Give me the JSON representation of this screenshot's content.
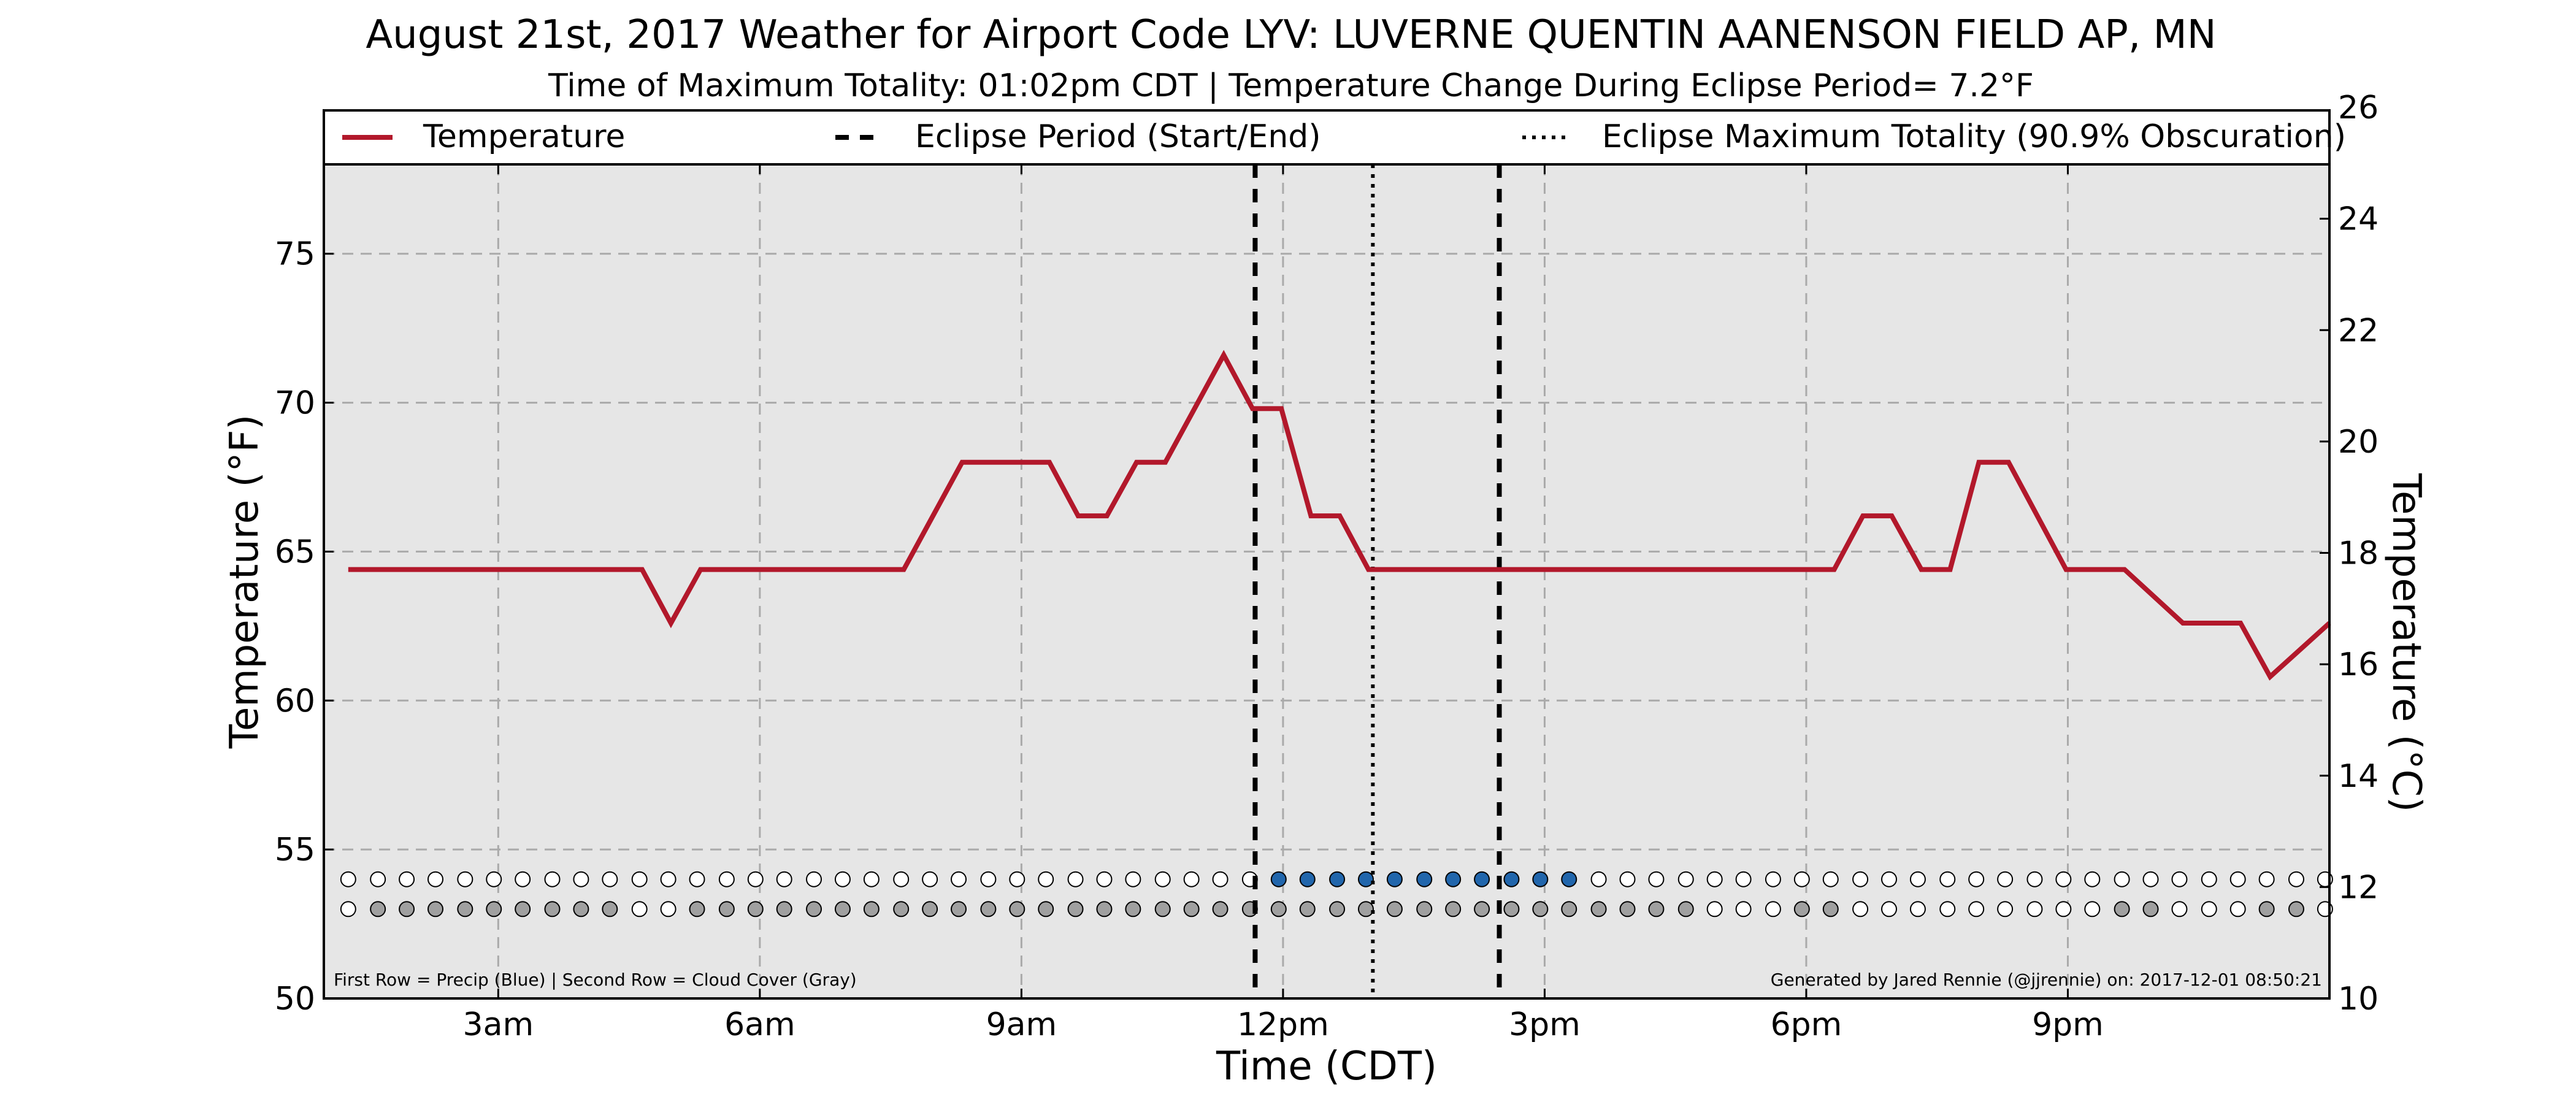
{
  "chart_data": {
    "type": "line",
    "title": "August 21st, 2017 Weather for Airport Code LYV: LUVERNE QUENTIN AANENSON FIELD AP, MN",
    "subtitle": "Time of Maximum Totality: 01:02pm CDT | Temperature Change During Eclipse Period= 7.2°F",
    "xlabel": "Time (CDT)",
    "ylabel_left": "Temperature (°F)",
    "ylabel_right": "Temperature (°C)",
    "x_unit": "hours after midnight (CDT)",
    "xlim": [
      1,
      24
    ],
    "ylim_left": [
      50,
      78
    ],
    "ylim_right": [
      10,
      26
    ],
    "x_ticks": [
      {
        "value": 3,
        "label": "3am"
      },
      {
        "value": 6,
        "label": "6am"
      },
      {
        "value": 9,
        "label": "9am"
      },
      {
        "value": 12,
        "label": "12pm"
      },
      {
        "value": 15,
        "label": "3pm"
      },
      {
        "value": 18,
        "label": "6pm"
      },
      {
        "value": 21,
        "label": "9pm"
      }
    ],
    "y_ticks_left": [
      50,
      55,
      60,
      65,
      70,
      75
    ],
    "y_ticks_right": [
      10,
      12,
      14,
      16,
      18,
      20,
      22,
      24,
      26
    ],
    "grid": true,
    "legend_placement": "top",
    "legend": [
      {
        "label": "Temperature",
        "style": "solid"
      },
      {
        "label": "Eclipse Period (Start/End)",
        "style": "dashed"
      },
      {
        "label": "Eclipse Maximum Totality (90.9% Obscuration)",
        "style": "dotted"
      }
    ],
    "series": [
      {
        "name": "Temperature",
        "color": "#b2182b",
        "x": [
          1.28,
          4.65,
          4.98,
          5.32,
          7.65,
          8.32,
          9.32,
          9.65,
          9.98,
          10.32,
          10.65,
          11.32,
          11.65,
          11.98,
          12.32,
          12.65,
          12.98,
          18.32,
          18.65,
          18.98,
          19.32,
          19.65,
          19.98,
          20.32,
          20.65,
          20.98,
          21.32,
          21.65,
          22.32,
          22.65,
          22.98,
          23.32,
          24.0
        ],
        "values": [
          64.4,
          64.4,
          62.6,
          64.4,
          64.4,
          68.0,
          68.0,
          66.2,
          66.2,
          68.0,
          68.0,
          71.6,
          69.8,
          69.8,
          66.2,
          66.2,
          64.4,
          64.4,
          66.2,
          66.2,
          64.4,
          64.4,
          68.0,
          68.0,
          66.2,
          64.4,
          64.4,
          64.4,
          62.6,
          62.6,
          62.6,
          60.8,
          62.6
        ]
      }
    ],
    "eclipse_start": 11.68,
    "eclipse_end": 14.48,
    "max_totality": 13.03,
    "observation_times": [
      1.28,
      1.62,
      1.95,
      2.28,
      2.62,
      2.95,
      3.28,
      3.62,
      3.95,
      4.28,
      4.62,
      4.95,
      5.28,
      5.62,
      5.95,
      6.28,
      6.62,
      6.95,
      7.28,
      7.62,
      7.95,
      8.28,
      8.62,
      8.95,
      9.28,
      9.62,
      9.95,
      10.28,
      10.62,
      10.95,
      11.28,
      11.62,
      11.95,
      12.28,
      12.62,
      12.95,
      13.28,
      13.62,
      13.95,
      14.28,
      14.62,
      14.95,
      15.28,
      15.62,
      15.95,
      16.28,
      16.62,
      16.95,
      17.28,
      17.62,
      17.95,
      18.28,
      18.62,
      18.95,
      19.28,
      19.62,
      19.95,
      20.28,
      20.62,
      20.95,
      21.28,
      21.62,
      21.95,
      22.28,
      22.62,
      22.95,
      23.28,
      23.62,
      23.95
    ],
    "precip_row_y": 54,
    "cloud_row_y": 53,
    "precip_flags": [
      0,
      0,
      0,
      0,
      0,
      0,
      0,
      0,
      0,
      0,
      0,
      0,
      0,
      0,
      0,
      0,
      0,
      0,
      0,
      0,
      0,
      0,
      0,
      0,
      0,
      0,
      0,
      0,
      0,
      0,
      0,
      0,
      1,
      1,
      1,
      1,
      1,
      1,
      1,
      1,
      1,
      1,
      1,
      0,
      0,
      0,
      0,
      0,
      0,
      0,
      0,
      0,
      0,
      0,
      0,
      0,
      0,
      0,
      0,
      0,
      0,
      0,
      0,
      0,
      0,
      0,
      0,
      0,
      0
    ],
    "cloud_flags": [
      0,
      1,
      1,
      1,
      1,
      1,
      1,
      1,
      1,
      1,
      0,
      0,
      1,
      1,
      1,
      1,
      1,
      1,
      1,
      1,
      1,
      1,
      1,
      1,
      1,
      1,
      1,
      1,
      1,
      1,
      1,
      1,
      1,
      1,
      1,
      1,
      1,
      1,
      1,
      1,
      1,
      1,
      1,
      1,
      1,
      1,
      1,
      0,
      0,
      0,
      1,
      1,
      0,
      0,
      0,
      0,
      0,
      0,
      0,
      0,
      0,
      1,
      1,
      0,
      0,
      0,
      1,
      1,
      0
    ],
    "colors": {
      "temperature": "#b2182b",
      "precip": "#2166ac",
      "cloud": "#a0a0a0",
      "empty": "#ffffff",
      "plot_bg": "#e6e6e6"
    },
    "footnote_left": "First Row = Precip (Blue) | Second Row = Cloud Cover (Gray)",
    "footnote_right": "Generated by Jared Rennie (@jjrennie) on: 2017-12-01 08:50:21"
  }
}
